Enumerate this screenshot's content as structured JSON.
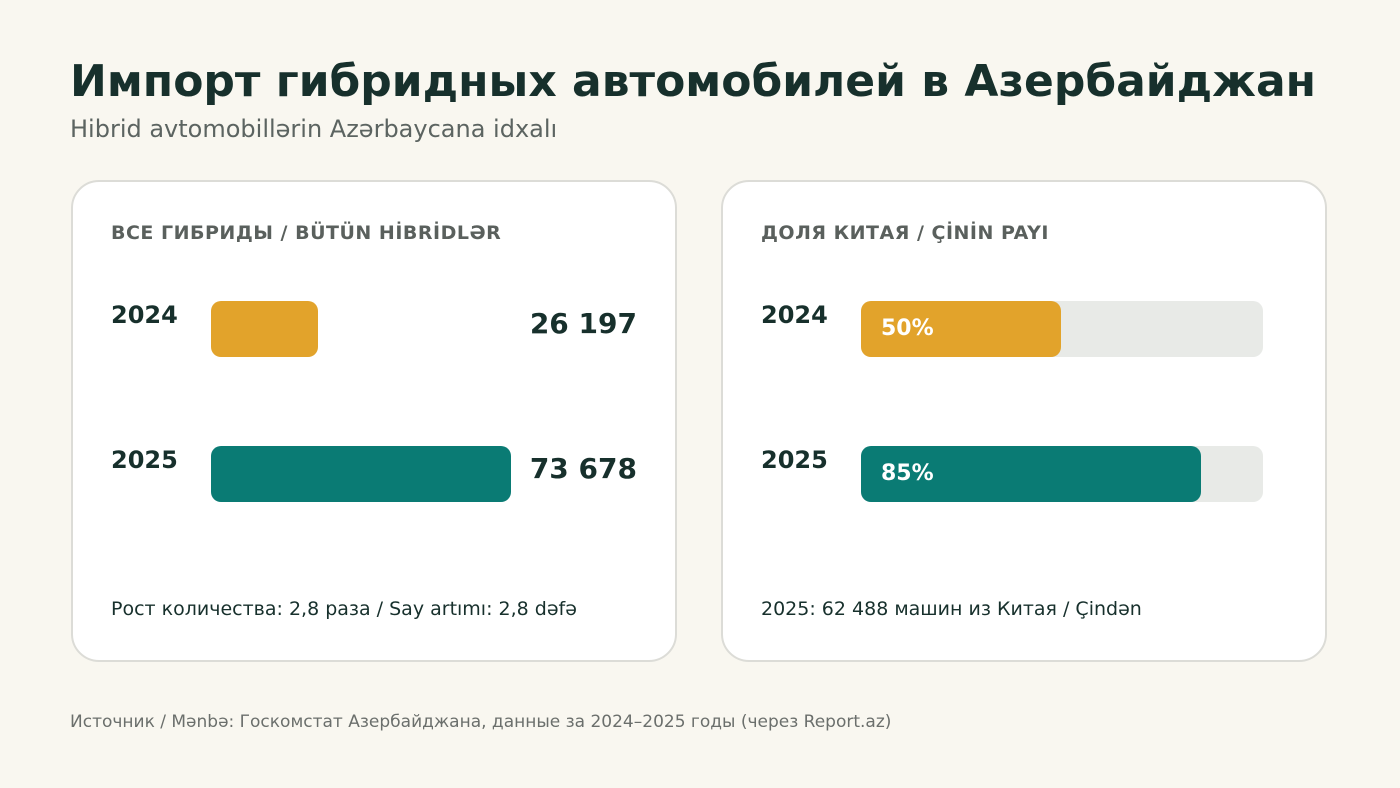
{
  "title": "Импорт гибридных автомобилей в Азербайджан",
  "subtitle": "Hibrid avtomobillərin Azərbaycana idxalı",
  "colors": {
    "year_2024": "#e2a32b",
    "year_2025": "#0a7b74",
    "track": "#e8eae7",
    "text": "#17302c",
    "background": "#f9f7f0"
  },
  "source": "Источник / Mənbə: Госкомстат Азербайджана, данные за 2024–2025 годы (через Report.az)",
  "chart_data": [
    {
      "type": "bar",
      "title": "ВСЕ ГИБРИДЫ / BÜTÜN HİBRİDLƏR",
      "categories": [
        "2024",
        "2025"
      ],
      "values": [
        26197,
        73678
      ],
      "value_labels": [
        "26 197",
        "73 678"
      ],
      "note": "Рост количества: 2,8 раза / Say artımı: 2,8 dəfə"
    },
    {
      "type": "bar",
      "title": "ДОЛЯ КИТАЯ / ÇİNİN PAYI",
      "categories": [
        "2024",
        "2025"
      ],
      "values": [
        50,
        85
      ],
      "value_labels": [
        "50%",
        "85%"
      ],
      "ylim": [
        0,
        100
      ],
      "note": "2025: 62 488 машин из Китая / Çindən"
    }
  ]
}
